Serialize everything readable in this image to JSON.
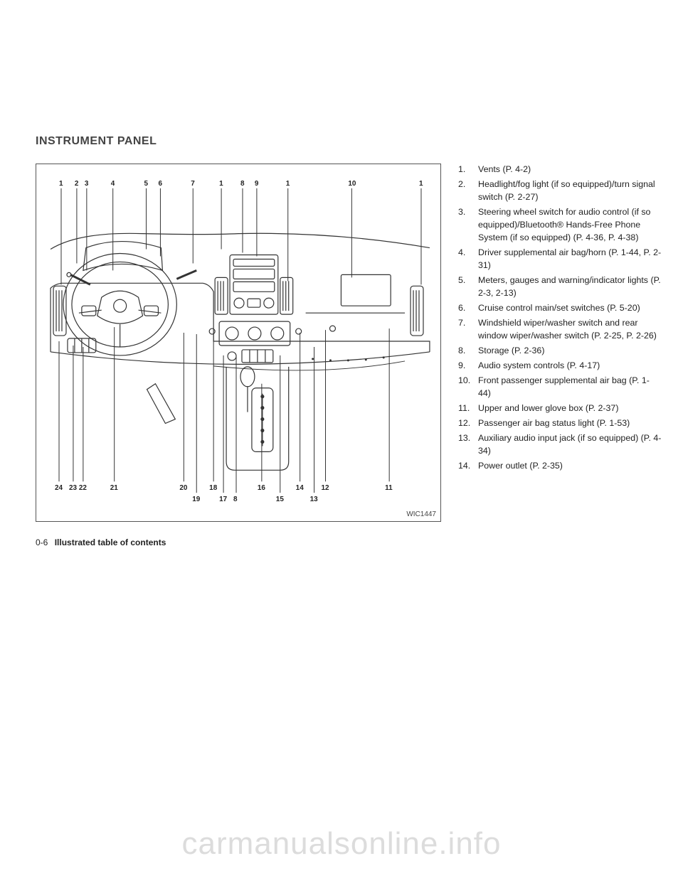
{
  "header": {
    "title": "INSTRUMENT PANEL"
  },
  "diagram": {
    "id": "WIC1447",
    "top_callouts": [
      "1",
      "2",
      "3",
      "4",
      "5",
      "6",
      "7",
      "1",
      "8",
      "9",
      "1",
      "10",
      "1"
    ],
    "bottom_callouts_row1": [
      "24",
      "23",
      "22",
      "21",
      "20",
      "18",
      "16",
      "14",
      "12",
      "11"
    ],
    "bottom_callouts_row2": [
      "19",
      "17",
      "8",
      "15",
      "13"
    ]
  },
  "legend": {
    "items": [
      {
        "n": "1.",
        "t": "Vents (P. 4-2)"
      },
      {
        "n": "2.",
        "t": "Headlight/fog light (if so equipped)/turn signal switch (P. 2-27)"
      },
      {
        "n": "3.",
        "t": "Steering wheel switch for audio control (if so equipped)/Bluetooth® Hands-Free Phone System (if so equipped) (P. 4-36, P. 4-38)"
      },
      {
        "n": "4.",
        "t": "Driver supplemental air bag/horn (P. 1-44, P. 2-31)"
      },
      {
        "n": "5.",
        "t": "Meters, gauges and warning/indicator lights (P. 2-3, 2-13)"
      },
      {
        "n": "6.",
        "t": "Cruise control main/set switches (P. 5-20)"
      },
      {
        "n": "7.",
        "t": "Windshield wiper/washer switch and rear window wiper/washer switch (P. 2-25, P. 2-26)"
      },
      {
        "n": "8.",
        "t": "Storage (P. 2-36)"
      },
      {
        "n": "9.",
        "t": "Audio system controls (P. 4-17)"
      },
      {
        "n": "10.",
        "t": "Front passenger supplemental air bag (P. 1-44)"
      },
      {
        "n": "11.",
        "t": "Upper and lower glove box (P. 2-37)"
      },
      {
        "n": "12.",
        "t": "Passenger air bag status light (P. 1-53)"
      },
      {
        "n": "13.",
        "t": "Auxiliary audio input jack (if so equipped) (P. 4-34)"
      },
      {
        "n": "14.",
        "t": "Power outlet (P. 2-35)"
      }
    ]
  },
  "footer": {
    "page": "0-6",
    "section": "Illustrated table of contents"
  },
  "watermark": "carmanualsonline.info"
}
